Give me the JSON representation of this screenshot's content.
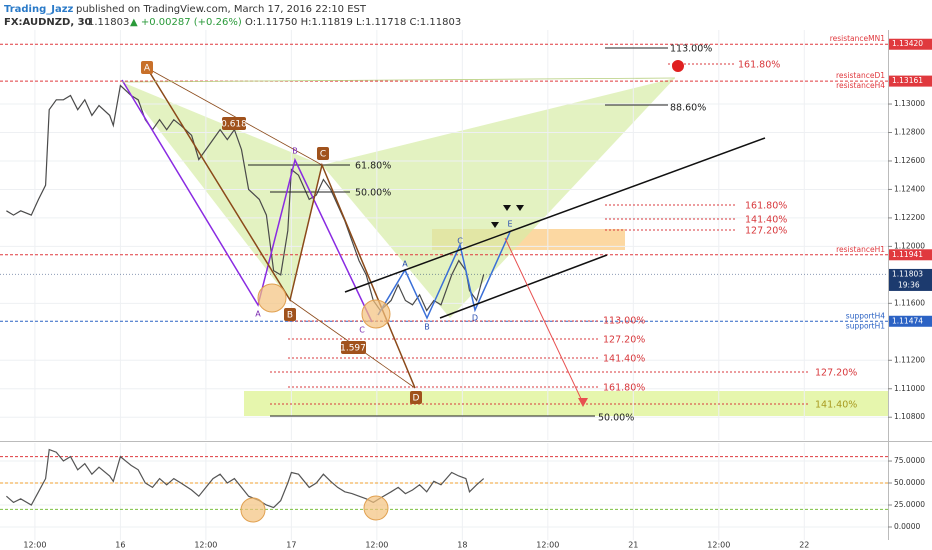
{
  "header": {
    "user": "Trading_Jazz",
    "published": "published on TradingView.com, March 17, 2016 22:10 EST",
    "symbol": "FX:AUDNZD, 30",
    "price": "1.11803",
    "change": "▲ +0.00287 (+0.26%)",
    "ohlc": "O:1.11750 H:1.11819 L:1.11718 C:1.11803"
  },
  "chart_data": [
    {
      "type": "line",
      "color": "#4a4a4a",
      "x": [
        1,
        3,
        5,
        8,
        10,
        12,
        13,
        15,
        17,
        19,
        21,
        23,
        25,
        27,
        30,
        31,
        33,
        36,
        38,
        40,
        42,
        44,
        46,
        48,
        50,
        53,
        55,
        57,
        59,
        61,
        63,
        65,
        67,
        69,
        72,
        74,
        76,
        78,
        80,
        81,
        83,
        86,
        88,
        90,
        92,
        94,
        96,
        98,
        100,
        102,
        104,
        106,
        109,
        111,
        113,
        115,
        117,
        119,
        121,
        123,
        126,
        128,
        130,
        131,
        133,
        135
      ],
      "values": [
        1.1225,
        1.1222,
        1.1225,
        1.1222,
        1.1233,
        1.1243,
        1.1296,
        1.1303,
        1.1303,
        1.1306,
        1.1296,
        1.1303,
        1.1292,
        1.1299,
        1.1292,
        1.1285,
        1.1313,
        1.1306,
        1.1303,
        1.1289,
        1.1282,
        1.1289,
        1.1282,
        1.1289,
        1.1285,
        1.1278,
        1.1261,
        1.1268,
        1.1275,
        1.1282,
        1.1275,
        1.1282,
        1.1268,
        1.124,
        1.1233,
        1.1222,
        1.1183,
        1.118,
        1.1211,
        1.1254,
        1.125,
        1.1233,
        1.1236,
        1.1247,
        1.124,
        1.1229,
        1.1218,
        1.1204,
        1.119,
        1.118,
        1.1162,
        1.1155,
        1.1162,
        1.1173,
        1.1162,
        1.1159,
        1.1166,
        1.1155,
        1.1162,
        1.1159,
        1.118,
        1.119,
        1.1183,
        1.1169,
        1.1162,
        1.11803
      ],
      "xlim": [
        -0.8,
        248.5
      ],
      "ylim": [
        1.1064,
        1.1352
      ],
      "yticks": [
        {
          "value": 1.13,
          "label": "1.13000"
        },
        {
          "value": 1.128,
          "label": "1.12800"
        },
        {
          "value": 1.126,
          "label": "1.12600"
        },
        {
          "value": 1.124,
          "label": "1.12400"
        },
        {
          "value": 1.122,
          "label": "1.12200"
        },
        {
          "value": 1.12,
          "label": "1.12000"
        },
        {
          "value": 1.116,
          "label": "1.11600"
        },
        {
          "value": 1.112,
          "label": "1.11200"
        },
        {
          "value": 1.11,
          "label": "1.11000"
        },
        {
          "value": 1.108,
          "label": "1.10800"
        }
      ],
      "grid": true,
      "levels": [
        {
          "names": [
            "resistanceMN1"
          ],
          "value": 1.1342,
          "label": "1.13420",
          "color": "#e0393e"
        },
        {
          "names": [
            "resistanceD1",
            "resistanceH4"
          ],
          "value": 1.13161,
          "color": "#e0393e"
        },
        {
          "names": [
            "resistanceH1"
          ],
          "value": 1.11941,
          "color": "#e0393e"
        },
        {
          "names": [
            "supportH4",
            "supportH1"
          ],
          "value": 1.11474,
          "color": "#2b62c4"
        }
      ],
      "last": {
        "value": 1.11803,
        "countdown": "19:36",
        "color": "#1c3a6e"
      },
      "annotations": [
        "A",
        "0.618",
        "B",
        "C",
        "61.80%",
        "50.00%",
        "A",
        "B",
        "C",
        "1.597",
        "D",
        "113.00%",
        "161.80%",
        "88.60%",
        "161.80%",
        "141.40%",
        "127.20%",
        "A",
        "C",
        "B",
        "D",
        "E",
        "113.00%",
        "127.20%",
        "141.40%",
        "161.80%",
        "127.20%",
        "141.40%",
        "50.00%"
      ]
    },
    {
      "type": "line",
      "color": "#555555",
      "x": [
        1,
        3,
        5,
        8,
        10,
        12,
        13,
        15,
        17,
        19,
        21,
        23,
        25,
        27,
        30,
        31,
        33,
        36,
        38,
        40,
        42,
        44,
        46,
        48,
        50,
        53,
        55,
        57,
        59,
        61,
        63,
        65,
        67,
        69,
        72,
        74,
        76,
        78,
        80,
        81,
        83,
        86,
        88,
        90,
        92,
        94,
        96,
        98,
        100,
        102,
        104,
        106,
        109,
        111,
        113,
        115,
        117,
        119,
        121,
        123,
        126,
        128,
        130,
        131,
        133,
        135
      ],
      "values": [
        35,
        28,
        32,
        25,
        40,
        55,
        88,
        85,
        75,
        80,
        65,
        72,
        60,
        68,
        58,
        52,
        80,
        70,
        65,
        50,
        45,
        55,
        48,
        55,
        50,
        42,
        35,
        45,
        55,
        60,
        50,
        55,
        45,
        35,
        30,
        25,
        22,
        30,
        50,
        62,
        60,
        45,
        50,
        60,
        52,
        45,
        40,
        38,
        35,
        32,
        28,
        33,
        40,
        45,
        38,
        42,
        48,
        40,
        52,
        48,
        62,
        58,
        55,
        40,
        48,
        55
      ],
      "xlim": [
        -0.8,
        248.5
      ],
      "ylim": [
        -14.8,
        95.5
      ],
      "xticks": [
        {
          "value": 9,
          "label": "12:00"
        },
        {
          "value": 33,
          "label": "16"
        },
        {
          "value": 57,
          "label": "12:00"
        },
        {
          "value": 81,
          "label": "17"
        },
        {
          "value": 105,
          "label": "12:00"
        },
        {
          "value": 129,
          "label": "18"
        },
        {
          "value": 153,
          "label": "12:00"
        },
        {
          "value": 177,
          "label": "21"
        },
        {
          "value": 201,
          "label": "12:00"
        },
        {
          "value": 225,
          "label": "22"
        }
      ],
      "yticks": [
        {
          "value": 75,
          "label": "75.0000"
        },
        {
          "value": 50,
          "label": "50.0000"
        },
        {
          "value": 25,
          "label": "25.0000"
        },
        {
          "value": 0,
          "label": "0.0000"
        }
      ],
      "levels": [
        {
          "value": 80,
          "color": "#e0393e"
        },
        {
          "value": 50,
          "color": "#f0a030"
        },
        {
          "value": 20,
          "color": "#7cc040"
        }
      ]
    }
  ]
}
